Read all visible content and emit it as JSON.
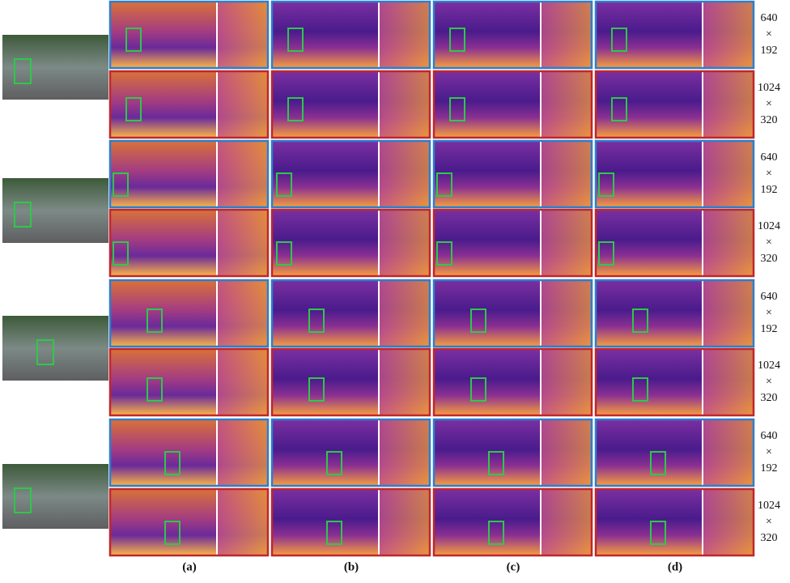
{
  "column_labels": [
    "(a)",
    "(b)",
    "(c)",
    "(d)"
  ],
  "resolution_labels": [
    {
      "width": "640",
      "symbol": "×",
      "height": "192"
    },
    {
      "width": "1024",
      "symbol": "×",
      "height": "320"
    }
  ]
}
